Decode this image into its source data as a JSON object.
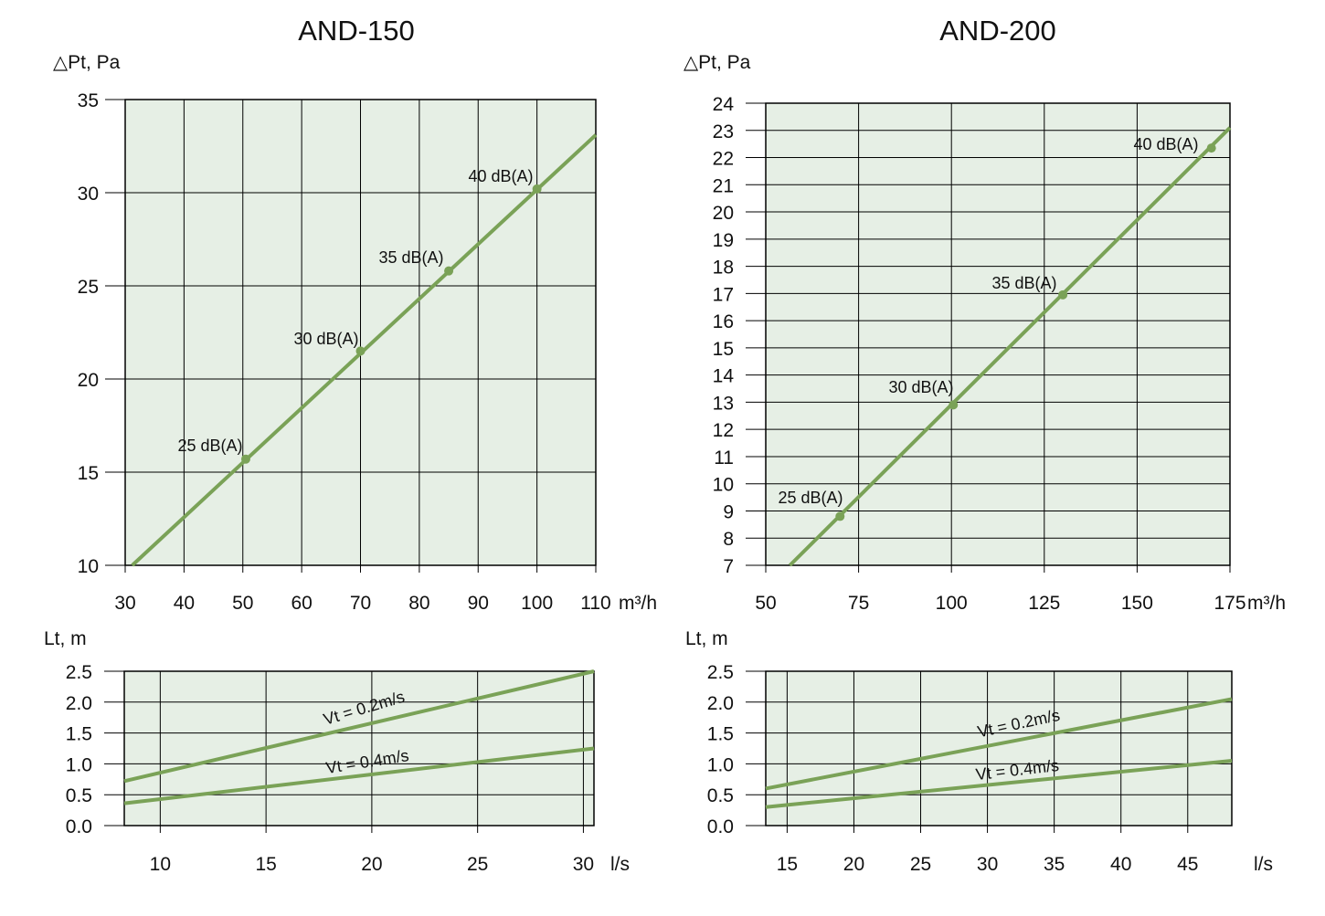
{
  "colors": {
    "plot_bg": "#e6efe5",
    "series": "#7aa257",
    "grid": "#000000"
  },
  "chart_data": [
    {
      "type": "line",
      "title": "AND-150",
      "ylabel": "△Pt, Pa",
      "xunit": "m³/h",
      "xlim": [
        30,
        110
      ],
      "ylim": [
        10,
        35
      ],
      "xticks": [
        30,
        40,
        50,
        60,
        70,
        80,
        90,
        100,
        110
      ],
      "yticks": [
        10,
        15,
        20,
        25,
        30,
        35
      ],
      "series": [
        {
          "x": [
            31.2,
            110
          ],
          "y": [
            10.0,
            33.1
          ]
        }
      ],
      "points": [
        {
          "x": 50.5,
          "y": 15.7,
          "label": "25 dB(A)"
        },
        {
          "x": 70,
          "y": 21.5,
          "label": "30 dB(A)"
        },
        {
          "x": 85,
          "y": 25.8,
          "label": "35 dB(A)"
        },
        {
          "x": 100,
          "y": 30.2,
          "label": "40 dB(A)"
        }
      ]
    },
    {
      "type": "line",
      "title": "AND-200",
      "ylabel": "△Pt, Pa",
      "xunit": "m³/h",
      "xlim": [
        50,
        175
      ],
      "ylim": [
        7,
        24
      ],
      "xticks": [
        50,
        75,
        100,
        125,
        150,
        175
      ],
      "yticks": [
        7,
        8,
        9,
        10,
        11,
        12,
        13,
        14,
        15,
        16,
        17,
        18,
        19,
        20,
        21,
        22,
        23,
        24
      ],
      "series": [
        {
          "x": [
            56.5,
            175
          ],
          "y": [
            7.0,
            23.1
          ]
        }
      ],
      "points": [
        {
          "x": 70,
          "y": 8.8,
          "label": "25 dB(A)"
        },
        {
          "x": 100.5,
          "y": 12.9,
          "label": "30 dB(A)"
        },
        {
          "x": 130,
          "y": 16.95,
          "label": "35 dB(A)"
        },
        {
          "x": 170,
          "y": 22.35,
          "label": "40 dB(A)"
        }
      ]
    },
    {
      "type": "line",
      "title": "",
      "ylabel": "Lt, m",
      "xunit": "l/s",
      "xlim": [
        8.3,
        30.5
      ],
      "ylim": [
        0,
        2.5
      ],
      "xticks": [
        10,
        15,
        20,
        25,
        30
      ],
      "yticks": [
        "0.0",
        "0.5",
        "1.0",
        "1.5",
        "2.0",
        "2.5"
      ],
      "series": [
        {
          "name": "Vt = 0.2m/s",
          "x": [
            8.3,
            30.5
          ],
          "y": [
            0.72,
            2.5
          ]
        },
        {
          "name": "Vt = 0.4m/s",
          "x": [
            8.3,
            30.5
          ],
          "y": [
            0.36,
            1.25
          ]
        }
      ]
    },
    {
      "type": "line",
      "title": "",
      "ylabel": "Lt, m",
      "xunit": "l/s",
      "xlim": [
        13.4,
        48.3
      ],
      "ylim": [
        0,
        2.5
      ],
      "xticks": [
        15,
        20,
        25,
        30,
        35,
        40,
        45
      ],
      "yticks": [
        "0.0",
        "0.5",
        "1.0",
        "1.5",
        "2.0",
        "2.5"
      ],
      "series": [
        {
          "name": "Vt = 0.2m/s",
          "x": [
            13.4,
            48.3
          ],
          "y": [
            0.6,
            2.05
          ]
        },
        {
          "name": "Vt = 0.4m/s",
          "x": [
            13.4,
            48.3
          ],
          "y": [
            0.3,
            1.05
          ]
        }
      ]
    }
  ]
}
